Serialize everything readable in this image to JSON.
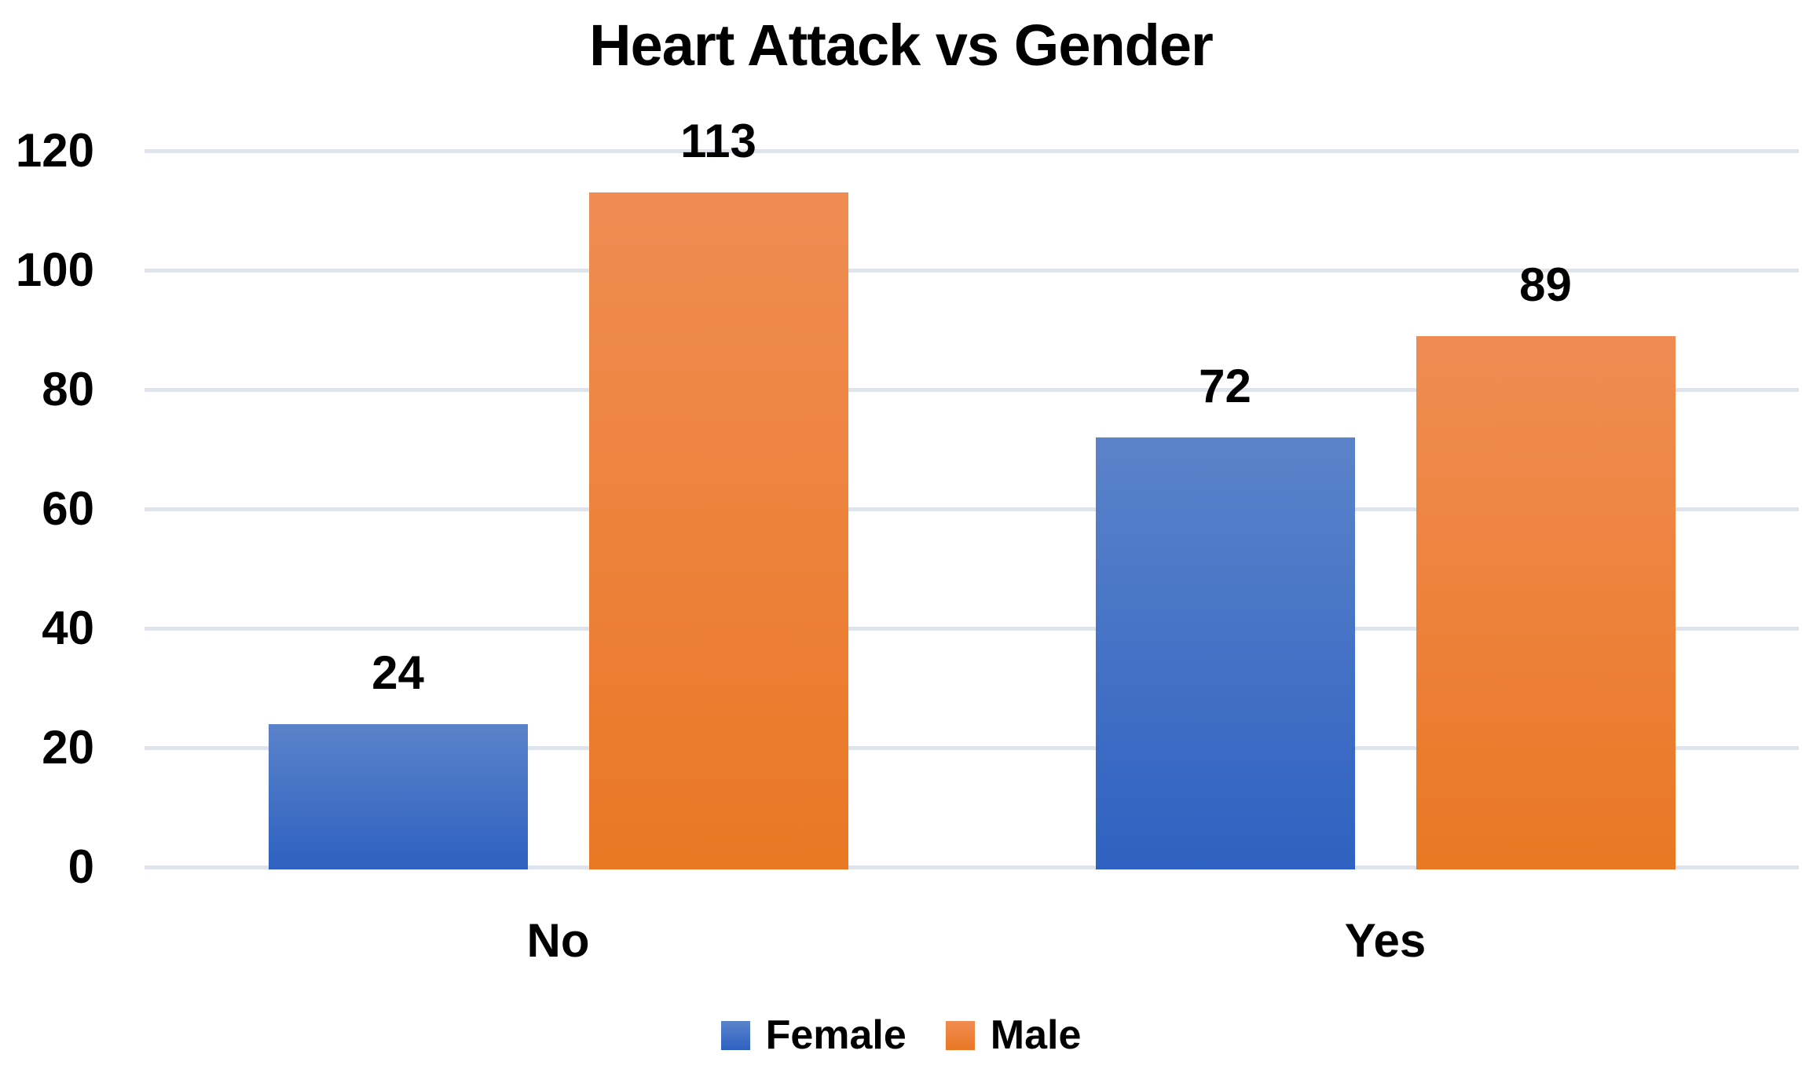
{
  "chart_data": {
    "type": "bar",
    "title": "Heart Attack vs Gender",
    "categories": [
      "No",
      "Yes"
    ],
    "series": [
      {
        "name": "Female",
        "values": [
          24,
          72
        ],
        "color_top": "#5b83ca",
        "color_bottom": "#2e61c1"
      },
      {
        "name": "Male",
        "values": [
          113,
          89
        ],
        "color_top": "#f08c53",
        "color_bottom": "#e97824"
      }
    ],
    "data_labels_shown": true,
    "y_axis": {
      "min": 0,
      "max": 120,
      "step": 20,
      "tick_labels": [
        "0",
        "20",
        "40",
        "60",
        "80",
        "100",
        "120"
      ]
    },
    "xlabel": "",
    "ylabel": "",
    "grid": true,
    "gridline_color": "#dfe3ec",
    "legend_position": "bottom",
    "text_color": "#000000",
    "background_color": "#ffffff"
  }
}
